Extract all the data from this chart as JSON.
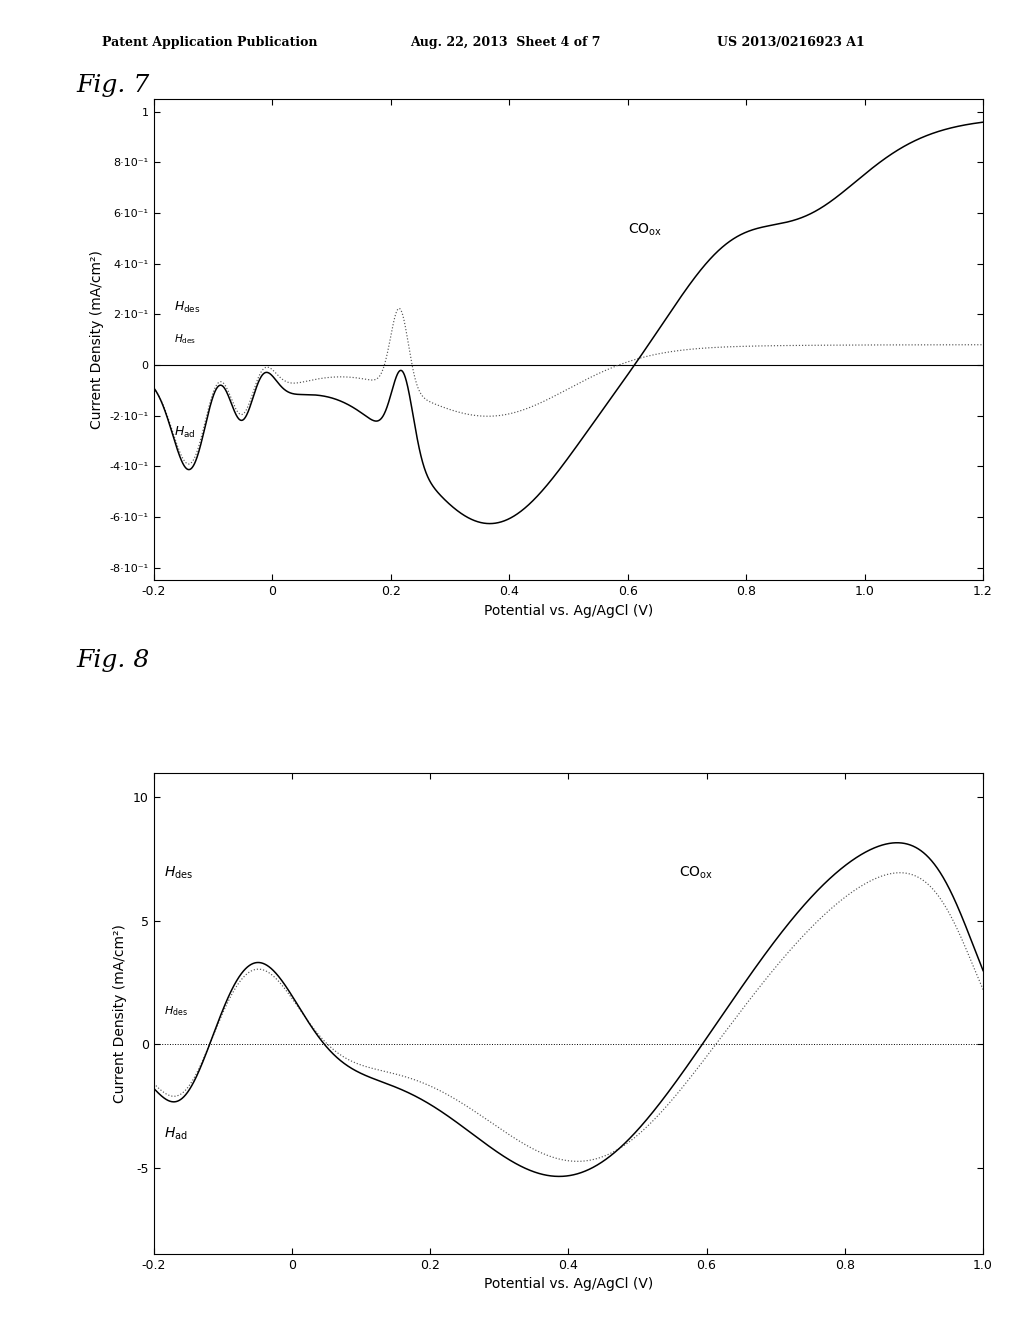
{
  "header_left": "Patent Application Publication",
  "header_center": "Aug. 22, 2013  Sheet 4 of 7",
  "header_right": "US 2013/0216923 A1",
  "fig7_title": "Fig. 7",
  "fig8_title": "Fig. 8",
  "xlabel": "Potential vs. Ag/AgCl (V)",
  "ylabel": "Current Density (mA/cm²)",
  "fig7_xlim": [
    -0.2,
    1.2
  ],
  "fig7_ylim": [
    -0.85,
    1.05
  ],
  "fig7_yticks": [
    -0.8,
    -0.6,
    -0.4,
    -0.2,
    0.0,
    0.2,
    0.4,
    0.6,
    0.8,
    1.0
  ],
  "fig7_ytick_labels": [
    "-8·10⁻¹",
    "-6·10⁻¹",
    "-4·10⁻¹",
    "-2·10⁻¹",
    "0",
    "2·10⁻¹",
    "4·10⁻¹",
    "6·10⁻¹",
    "8·10⁻¹",
    "1"
  ],
  "fig7_xticks": [
    -0.2,
    0.0,
    0.2,
    0.4,
    0.6,
    0.8,
    1.0,
    1.2
  ],
  "fig8_xlim": [
    -0.2,
    1.0
  ],
  "fig8_ylim": [
    -8.5,
    11.0
  ],
  "fig8_yticks": [
    -5,
    0,
    5,
    10
  ],
  "fig8_xticks": [
    -0.2,
    0.0,
    0.2,
    0.4,
    0.6,
    0.8,
    1.0
  ],
  "line_color_solid": "#000000",
  "line_color_dotted": "#555555",
  "bg_color": "#ffffff",
  "header_color": "#000000"
}
